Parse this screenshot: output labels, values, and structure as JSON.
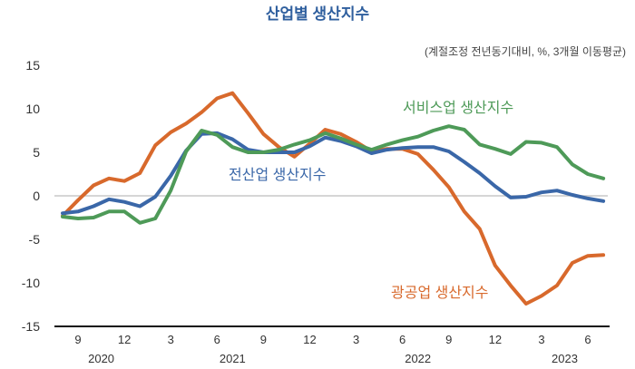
{
  "chart_data": {
    "type": "line",
    "title": "산업별 생산지수",
    "subtitle": "(계절조정 전년동기대비, %, 3개월 이동평균)",
    "xlabel": "",
    "ylabel": "",
    "ylim": [
      -15,
      15
    ],
    "yticks": [
      15,
      10,
      5,
      0,
      -5,
      -10,
      -15
    ],
    "x_start": "2020-08",
    "x_end": "2023-07",
    "xticks": [
      {
        "index": 1,
        "label": "9"
      },
      {
        "index": 4,
        "label": "12"
      },
      {
        "index": 7,
        "label": "3"
      },
      {
        "index": 10,
        "label": "6"
      },
      {
        "index": 13,
        "label": "9"
      },
      {
        "index": 16,
        "label": "12"
      },
      {
        "index": 19,
        "label": "3"
      },
      {
        "index": 22,
        "label": "6"
      },
      {
        "index": 25,
        "label": "9"
      },
      {
        "index": 28,
        "label": "12"
      },
      {
        "index": 31,
        "label": "3"
      },
      {
        "index": 34,
        "label": "6"
      }
    ],
    "year_labels": [
      {
        "index": 2.5,
        "label": "2020"
      },
      {
        "index": 11,
        "label": "2021"
      },
      {
        "index": 23,
        "label": "2022"
      },
      {
        "index": 32.5,
        "label": "2023"
      }
    ],
    "grid": false,
    "series": [
      {
        "name": "광공업 생산지수",
        "color": "#d8692c",
        "values": [
          -2.3,
          -0.5,
          1.2,
          2.0,
          1.7,
          2.6,
          5.8,
          7.3,
          8.3,
          9.6,
          11.2,
          11.8,
          9.5,
          7.1,
          5.6,
          4.5,
          6.0,
          7.6,
          7.1,
          6.2,
          5.1,
          5.4,
          5.4,
          4.8,
          3.0,
          1.0,
          -1.8,
          -3.8,
          -8.0,
          -10.3,
          -12.4,
          -11.5,
          -10.3,
          -7.7,
          -6.9,
          -6.8
        ]
      },
      {
        "name": "전산업 생산지수",
        "color": "#3a67a8",
        "values": [
          -2.0,
          -1.8,
          -1.2,
          -0.4,
          -0.7,
          -1.2,
          -0.1,
          2.3,
          5.2,
          7.1,
          7.2,
          6.5,
          5.3,
          5.0,
          5.0,
          5.0,
          5.7,
          6.7,
          6.3,
          5.7,
          4.9,
          5.3,
          5.5,
          5.6,
          5.6,
          5.1,
          3.9,
          2.6,
          1.1,
          -0.2,
          -0.1,
          0.4,
          0.6,
          0.1,
          -0.3,
          -0.6
        ]
      },
      {
        "name": "서비스업 생산지수",
        "color": "#4e9a58",
        "values": [
          -2.4,
          -2.6,
          -2.5,
          -1.8,
          -1.8,
          -3.1,
          -2.6,
          0.6,
          5.1,
          7.5,
          7.0,
          5.6,
          5.0,
          5.0,
          5.3,
          5.9,
          6.4,
          7.2,
          6.6,
          5.9,
          5.3,
          5.9,
          6.4,
          6.8,
          7.5,
          8.0,
          7.6,
          5.9,
          5.4,
          4.8,
          6.2,
          6.1,
          5.6,
          3.6,
          2.5,
          2.0
        ]
      }
    ],
    "annotations": [
      "서비스업 생산지수",
      "전산업 생산지수",
      "광공업 생산지수"
    ],
    "title_color": "#2f5f9e"
  }
}
